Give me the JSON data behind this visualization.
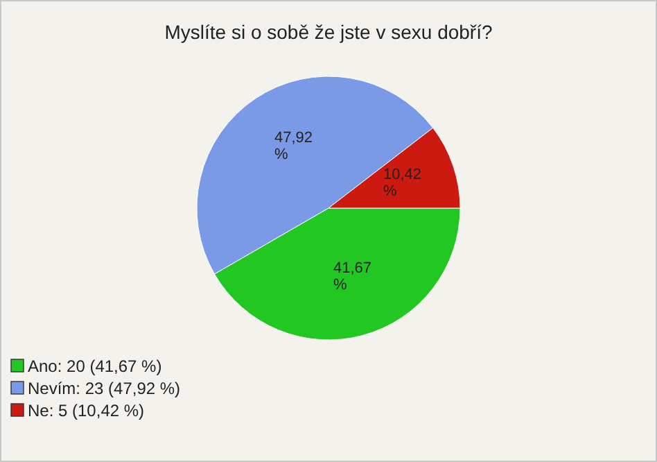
{
  "chart_data": {
    "type": "pie",
    "title": "Myslíte si o sobě že jste v sexu dobří?",
    "categories": [
      "Ano: 20 (41,67 %)",
      "Nevím: 23 (47,92 %)",
      "Ne: 5 (10,42 %)"
    ],
    "values": [
      41.67,
      47.92,
      10.42
    ],
    "value_labels": [
      "41,67 %",
      "47,92 %",
      "10,42 %"
    ],
    "colors": [
      "#22c722",
      "#7a9ae8",
      "#cc1a10"
    ],
    "legend": "bottom left"
  }
}
